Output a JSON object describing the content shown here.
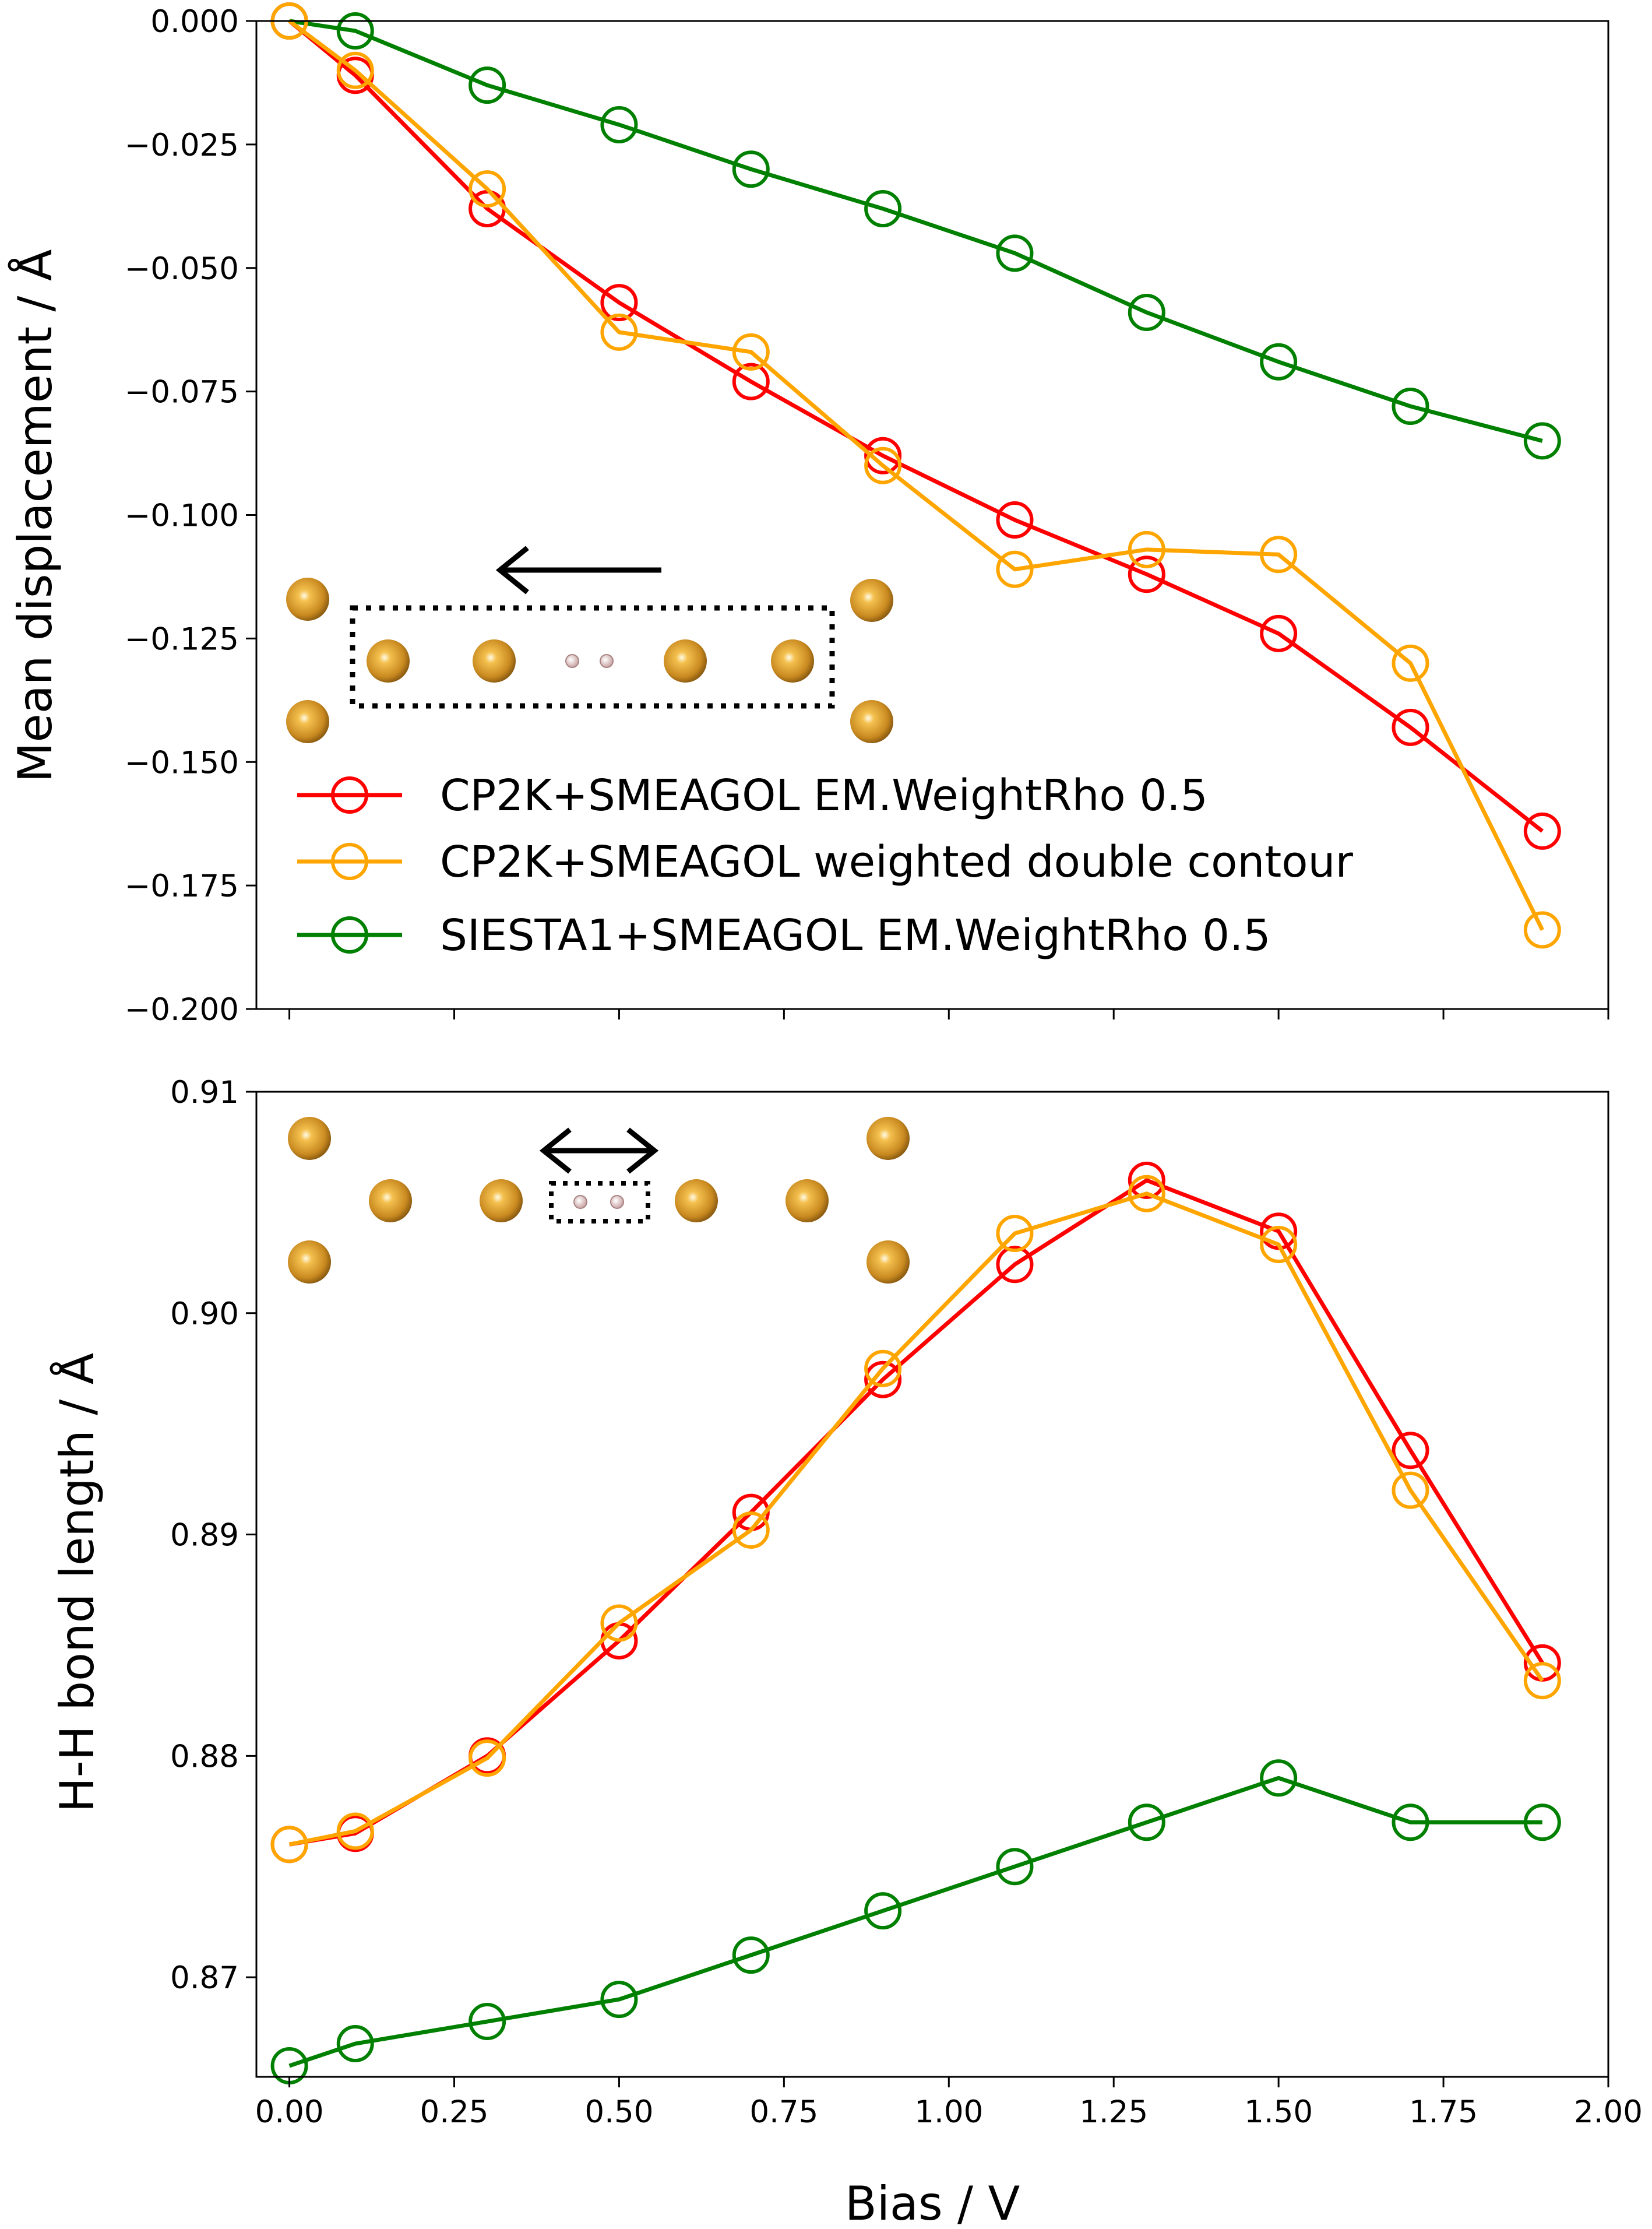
{
  "chart_data": [
    {
      "type": "line",
      "panel": "top",
      "title": "",
      "xlabel": "",
      "ylabel": "Mean displacement / Å",
      "xlim": [
        -0.05,
        2.0
      ],
      "ylim": [
        -0.2,
        0.0
      ],
      "xticks": [
        0.0,
        0.25,
        0.5,
        0.75,
        1.0,
        1.25,
        1.5,
        1.75,
        2.0
      ],
      "yticks": [
        0.0,
        -0.025,
        -0.05,
        -0.075,
        -0.1,
        -0.125,
        -0.15,
        -0.175,
        -0.2
      ],
      "ytick_labels": [
        "0.000",
        "−0.025",
        "−0.050",
        "−0.075",
        "−0.100",
        "−0.125",
        "−0.150",
        "−0.175",
        "−0.200"
      ],
      "x": [
        0.0,
        0.1,
        0.3,
        0.5,
        0.7,
        0.9,
        1.1,
        1.3,
        1.5,
        1.7,
        1.9
      ],
      "series": [
        {
          "name": "CP2K+SMEAGOL EM.WeightRho 0.5",
          "color": "#ff0000",
          "values": [
            0.0,
            -0.011,
            -0.038,
            -0.057,
            -0.073,
            -0.088,
            -0.101,
            -0.112,
            -0.124,
            -0.143,
            -0.164
          ]
        },
        {
          "name": "CP2K+SMEAGOL weighted double contour",
          "color": "#ffa500",
          "values": [
            0.0,
            -0.01,
            -0.034,
            -0.063,
            -0.067,
            -0.09,
            -0.111,
            -0.107,
            -0.108,
            -0.13,
            -0.184
          ]
        },
        {
          "name": "SIESTA1+SMEAGOL EM.WeightRho 0.5",
          "color": "#008000",
          "values": [
            0.0,
            -0.002,
            -0.013,
            -0.021,
            -0.03,
            -0.038,
            -0.047,
            -0.059,
            -0.069,
            -0.078,
            -0.085
          ]
        }
      ],
      "legend": "lower-left",
      "inset": "gold atom chain with dotted box around H2 and a left-pointing arrow"
    },
    {
      "type": "line",
      "panel": "bottom",
      "title": "",
      "xlabel": "Bias / V",
      "ylabel": "H-H bond length / Å",
      "xlim": [
        -0.05,
        2.0
      ],
      "ylim": [
        0.8655,
        0.91
      ],
      "xticks": [
        0.0,
        0.25,
        0.5,
        0.75,
        1.0,
        1.25,
        1.5,
        1.75,
        2.0
      ],
      "xtick_labels": [
        "0.00",
        "0.25",
        "0.50",
        "0.75",
        "1.00",
        "1.25",
        "1.50",
        "1.75",
        "2.00"
      ],
      "yticks": [
        0.87,
        0.88,
        0.89,
        0.9,
        0.91
      ],
      "ytick_labels": [
        "0.87",
        "0.88",
        "0.89",
        "0.90",
        "0.91"
      ],
      "x": [
        0.0,
        0.1,
        0.3,
        0.5,
        0.7,
        0.9,
        1.1,
        1.3,
        1.5,
        1.7,
        1.9
      ],
      "series": [
        {
          "name": "CP2K+SMEAGOL EM.WeightRho 0.5",
          "color": "#ff0000",
          "values": [
            0.876,
            0.8765,
            0.88,
            0.8852,
            0.891,
            0.897,
            0.9022,
            0.906,
            0.9037,
            0.8938,
            0.8842
          ]
        },
        {
          "name": "CP2K+SMEAGOL weighted double contour",
          "color": "#ffa500",
          "values": [
            0.876,
            0.8766,
            0.8799,
            0.886,
            0.8902,
            0.8975,
            0.9036,
            0.9054,
            0.9031,
            0.892,
            0.8834
          ]
        },
        {
          "name": "SIESTA1+SMEAGOL EM.WeightRho 0.5",
          "color": "#008000",
          "values": [
            0.866,
            0.867,
            0.868,
            0.869,
            0.871,
            0.873,
            0.875,
            0.877,
            0.879,
            0.877,
            0.877
          ]
        }
      ],
      "inset": "gold atom chain with dotted box around H2 and a double-headed arrow"
    }
  ]
}
